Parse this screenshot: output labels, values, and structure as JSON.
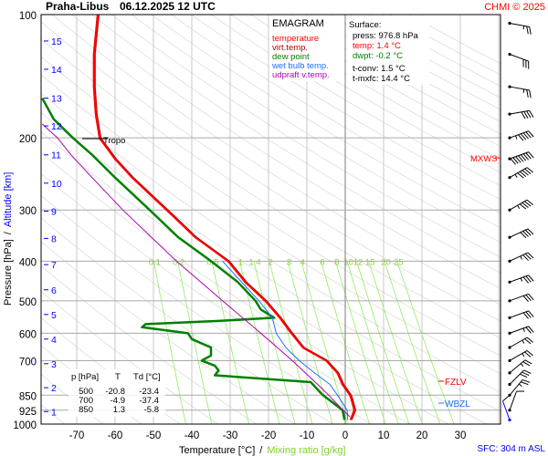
{
  "header": {
    "station": "Praha-Libus",
    "datetime": "06.12.2025 12 UTC",
    "credit": "CHMI © 2025"
  },
  "legend": {
    "title": "EMAGRAM",
    "items": [
      {
        "label": "temperature",
        "color": "#ff0000"
      },
      {
        "label": "virt.temp.",
        "color": "#b00000"
      },
      {
        "label": "dew point",
        "color": "#008000"
      },
      {
        "label": "wet bulb temp.",
        "color": "#1e6fff"
      },
      {
        "label": "udpraft v.temp.",
        "color": "#b000b0"
      }
    ]
  },
  "surface": {
    "title": "Surface:",
    "press": "press: 976.8 hPa",
    "temp": "temp: 1.4 °C",
    "dwpt": "dwpt: -0.2 °C",
    "tconv": "t-conv: 1.5 °C",
    "tmxfc": "t-mxfc: 14.4 °C"
  },
  "table": {
    "headers": [
      "p [hPa]",
      "T",
      "Td [°C]"
    ],
    "rows": [
      [
        "500",
        "-20.8",
        "-23.4"
      ],
      [
        "700",
        "-4.9",
        "-37.4"
      ],
      [
        "850",
        "1.3",
        "-5.8"
      ]
    ]
  },
  "markers": {
    "tropo": "Tropo",
    "mxws": "MXWS",
    "fzlv": "FZLV",
    "wbzl": "WBZL",
    "sfc": "SFC: 304 m ASL"
  },
  "chart_data": {
    "type": "line",
    "title": "Praha-Libus 06.12.2025 12 UTC",
    "xlabel": "Temperature [°C]",
    "xlabel_sep": "/",
    "xlabel2": "Mixing ratio [g/kg]",
    "ylabel": "Pressure [hPa]",
    "ylabel_sep": "/",
    "ylabel2": "Altitude [km]",
    "xlim": [
      -80,
      40
    ],
    "ylim": [
      1000,
      100
    ],
    "x_ticks": [
      "-70",
      "-60",
      "-50",
      "-40",
      "-30",
      "-20",
      "-10",
      "0",
      "10",
      "20",
      "30"
    ],
    "p_ticks": [
      "100",
      "200",
      "300",
      "400",
      "500",
      "600",
      "700",
      "850",
      "925",
      "1000"
    ],
    "altitude_ticks": [
      {
        "km": "1",
        "p": 932
      },
      {
        "km": "2",
        "p": 815
      },
      {
        "km": "3",
        "p": 712
      },
      {
        "km": "4",
        "p": 620
      },
      {
        "km": "5",
        "p": 540
      },
      {
        "km": "6",
        "p": 470
      },
      {
        "km": "7",
        "p": 408
      },
      {
        "km": "8",
        "p": 352
      },
      {
        "km": "9",
        "p": 302
      },
      {
        "km": "10",
        "p": 258
      },
      {
        "km": "11",
        "p": 220
      },
      {
        "km": "12",
        "p": 187
      },
      {
        "km": "13",
        "p": 160
      },
      {
        "km": "14",
        "p": 136
      },
      {
        "km": "15",
        "p": 116
      }
    ],
    "mixing_ratio_labels": [
      "0.1",
      "0.2",
      "0.5",
      "1",
      "1.4",
      "2",
      "3",
      "4",
      "6",
      "8",
      "10",
      "12",
      "15",
      "20",
      "25"
    ],
    "series": [
      {
        "name": "temperature",
        "color": "#ff0000",
        "points": [
          [
            976.8,
            1.4
          ],
          [
            925,
            2.4
          ],
          [
            880,
            1.8
          ],
          [
            850,
            1.3
          ],
          [
            800,
            -0.7
          ],
          [
            750,
            -2
          ],
          [
            700,
            -4.9
          ],
          [
            650,
            -11
          ],
          [
            600,
            -14
          ],
          [
            550,
            -17
          ],
          [
            500,
            -20.8
          ],
          [
            450,
            -26
          ],
          [
            400,
            -30.5
          ],
          [
            350,
            -39
          ],
          [
            300,
            -46.5
          ],
          [
            250,
            -55.5
          ],
          [
            225,
            -60
          ],
          [
            200,
            -64
          ],
          [
            175,
            -65
          ],
          [
            150,
            -65.5
          ],
          [
            125,
            -65.5
          ],
          [
            100,
            -64.5
          ]
        ]
      },
      {
        "name": "dew point",
        "color": "#008000",
        "points": [
          [
            976.8,
            -0.2
          ],
          [
            925,
            -0.7
          ],
          [
            850,
            -5.8
          ],
          [
            790,
            -9
          ],
          [
            760,
            -34
          ],
          [
            740,
            -33
          ],
          [
            720,
            -34
          ],
          [
            700,
            -37.4
          ],
          [
            680,
            -35
          ],
          [
            650,
            -35
          ],
          [
            620,
            -40
          ],
          [
            600,
            -41
          ],
          [
            580,
            -53
          ],
          [
            570,
            -52
          ],
          [
            560,
            -33
          ],
          [
            550,
            -18.5
          ],
          [
            525,
            -22
          ],
          [
            500,
            -23.4
          ],
          [
            450,
            -28
          ],
          [
            400,
            -35
          ],
          [
            350,
            -43.5
          ],
          [
            300,
            -51
          ],
          [
            250,
            -60
          ],
          [
            220,
            -66
          ],
          [
            200,
            -71
          ],
          [
            180,
            -76
          ],
          [
            160,
            -79
          ]
        ]
      },
      {
        "name": "wet bulb temp.",
        "color": "#1e6fff",
        "points": [
          [
            976.8,
            0.6
          ],
          [
            925,
            0.5
          ],
          [
            850,
            -2
          ],
          [
            800,
            -4
          ],
          [
            750,
            -8
          ],
          [
            700,
            -12
          ],
          [
            650,
            -15.5
          ],
          [
            600,
            -18
          ],
          [
            550,
            -19
          ],
          [
            500,
            -22.5
          ],
          [
            450,
            -27
          ],
          [
            400,
            -32
          ]
        ]
      },
      {
        "name": "udpraft v.temp.",
        "color": "#b000b0",
        "points": [
          [
            960,
            1.2
          ],
          [
            900,
            -1.8
          ],
          [
            850,
            -4.3
          ],
          [
            800,
            -7.2
          ],
          [
            700,
            -13.8
          ],
          [
            600,
            -22
          ],
          [
            500,
            -32
          ],
          [
            400,
            -44
          ],
          [
            300,
            -58
          ],
          [
            250,
            -66
          ],
          [
            220,
            -71.5
          ],
          [
            200,
            -75
          ],
          [
            185,
            -79
          ]
        ]
      }
    ],
    "wind_barbs": [
      {
        "p": 105,
        "dir": 280,
        "kt": 25
      },
      {
        "p": 125,
        "dir": 290,
        "kt": 30
      },
      {
        "p": 150,
        "dir": 280,
        "kt": 25
      },
      {
        "p": 175,
        "dir": 260,
        "kt": 40
      },
      {
        "p": 200,
        "dir": 250,
        "kt": 55
      },
      {
        "p": 225,
        "dir": 250,
        "kt": 80
      },
      {
        "p": 250,
        "dir": 240,
        "kt": 55
      },
      {
        "p": 300,
        "dir": 240,
        "kt": 45
      },
      {
        "p": 350,
        "dir": 245,
        "kt": 40
      },
      {
        "p": 400,
        "dir": 245,
        "kt": 35
      },
      {
        "p": 450,
        "dir": 250,
        "kt": 35
      },
      {
        "p": 500,
        "dir": 250,
        "kt": 30
      },
      {
        "p": 550,
        "dir": 250,
        "kt": 30
      },
      {
        "p": 600,
        "dir": 250,
        "kt": 25
      },
      {
        "p": 650,
        "dir": 240,
        "kt": 25
      },
      {
        "p": 700,
        "dir": 240,
        "kt": 25
      },
      {
        "p": 750,
        "dir": 230,
        "kt": 25
      },
      {
        "p": 800,
        "dir": 225,
        "kt": 30
      },
      {
        "p": 850,
        "dir": 220,
        "kt": 25
      },
      {
        "p": 925,
        "dir": 200,
        "kt": 10
      },
      {
        "p": 976.8,
        "dir": 160,
        "kt": 10
      }
    ]
  }
}
